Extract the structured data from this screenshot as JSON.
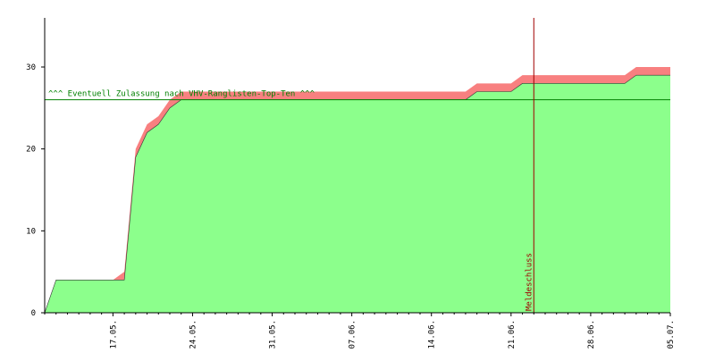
{
  "chart_data": {
    "type": "stacked-area",
    "categories": [
      null,
      null,
      null,
      null,
      null,
      null,
      "17.05.",
      null,
      null,
      null,
      null,
      null,
      null,
      "24.05.",
      null,
      null,
      null,
      null,
      null,
      null,
      "31.05.",
      null,
      null,
      null,
      null,
      null,
      null,
      "07.06.",
      null,
      null,
      null,
      null,
      null,
      null,
      "14.06.",
      null,
      null,
      null,
      null,
      null,
      null,
      "21.06.",
      null,
      null,
      null,
      null,
      null,
      null,
      "28.06.",
      null,
      null,
      null,
      null,
      null,
      null,
      "05.07."
    ],
    "series": [
      {
        "color": "#8cff8c",
        "values": [
          0,
          4,
          4,
          4,
          4,
          4,
          4,
          4,
          19,
          22,
          23,
          25,
          26,
          26,
          26,
          26,
          26,
          26,
          26,
          26,
          26,
          26,
          26,
          26,
          26,
          26,
          26,
          26,
          26,
          26,
          26,
          26,
          26,
          26,
          26,
          26,
          26,
          26,
          27,
          27,
          27,
          27,
          28,
          28,
          28,
          28,
          28,
          28,
          28,
          28,
          28,
          28,
          29,
          29,
          29,
          29
        ]
      },
      {
        "color": "#f88080",
        "values": [
          0,
          0,
          0,
          0,
          0,
          0,
          0,
          1,
          1,
          1,
          1,
          1,
          1,
          1,
          1,
          1,
          1,
          1,
          1,
          1,
          1,
          1,
          1,
          1,
          1,
          1,
          1,
          1,
          1,
          1,
          1,
          1,
          1,
          1,
          1,
          1,
          1,
          1,
          1,
          1,
          1,
          1,
          1,
          1,
          1,
          1,
          1,
          1,
          1,
          1,
          1,
          1,
          1,
          1,
          1,
          1
        ]
      }
    ],
    "ylim": [
      0,
      36
    ],
    "yticks": [
      0,
      10,
      20,
      30
    ],
    "hline": {
      "value": 26,
      "label": "^^^ Eventuell Zulassung nach VHV-Ranglisten-Top-Ten ^^^",
      "color": "#008000"
    },
    "vline": {
      "position": 43,
      "label": "Meldeschluss",
      "color": "#a00000"
    }
  }
}
